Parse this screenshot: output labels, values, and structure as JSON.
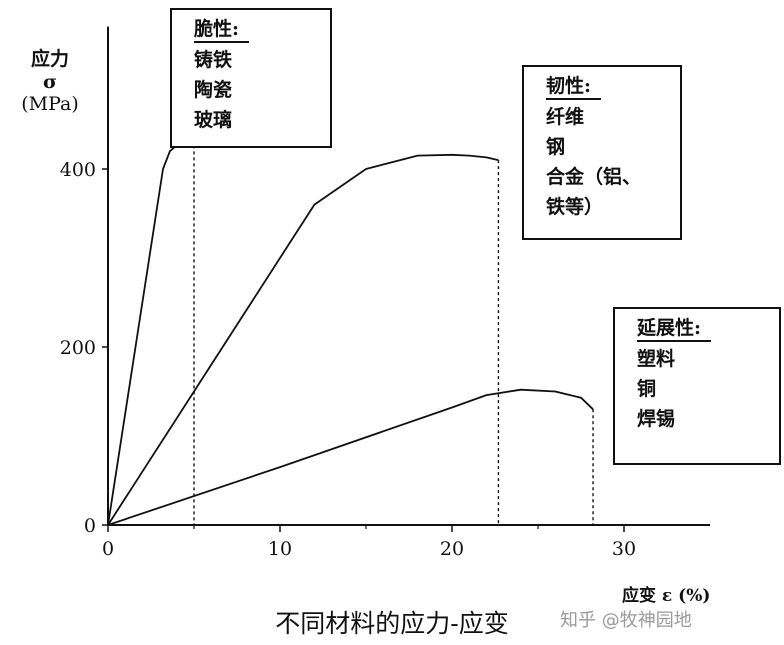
{
  "chart_data": {
    "type": "line",
    "title": "",
    "caption": "不同材料的应力-应变",
    "ylabel_lines": [
      "应力",
      "σ",
      "(MPa)"
    ],
    "xlabel": "应变 ε (%)",
    "xlim": [
      0,
      35
    ],
    "ylim": [
      0,
      560
    ],
    "xticks": [
      0,
      10,
      20,
      30
    ],
    "yticks": [
      0,
      200,
      400
    ],
    "grid": false,
    "series": [
      {
        "x": [
          0,
          3.2,
          3.6,
          4.2,
          5.0
        ],
        "y": [
          0,
          400,
          420,
          430,
          440
        ],
        "end_x": 5.0
      },
      {
        "x": [
          0,
          12,
          15,
          18,
          20,
          21,
          22,
          22.7
        ],
        "y": [
          0,
          360,
          400,
          415,
          416,
          415,
          413,
          410
        ],
        "end_x": 22.7
      },
      {
        "x": [
          0,
          10,
          20,
          22,
          24,
          26,
          27.5,
          28.2
        ],
        "y": [
          0,
          65,
          132,
          146,
          152,
          150,
          143,
          130
        ],
        "end_x": 28.2
      }
    ],
    "annotations": [
      {
        "heading": "脆性:",
        "items": [
          "铸铁",
          "陶瓷",
          "玻璃"
        ]
      },
      {
        "heading": "韧性:",
        "items": [
          "纤维",
          "钢",
          "合金（铝、",
          "铁等）"
        ]
      },
      {
        "heading": "延展性:",
        "items": [
          "塑料",
          "铜",
          "焊锡"
        ]
      }
    ]
  },
  "watermark": "知乎 @牧神园地"
}
